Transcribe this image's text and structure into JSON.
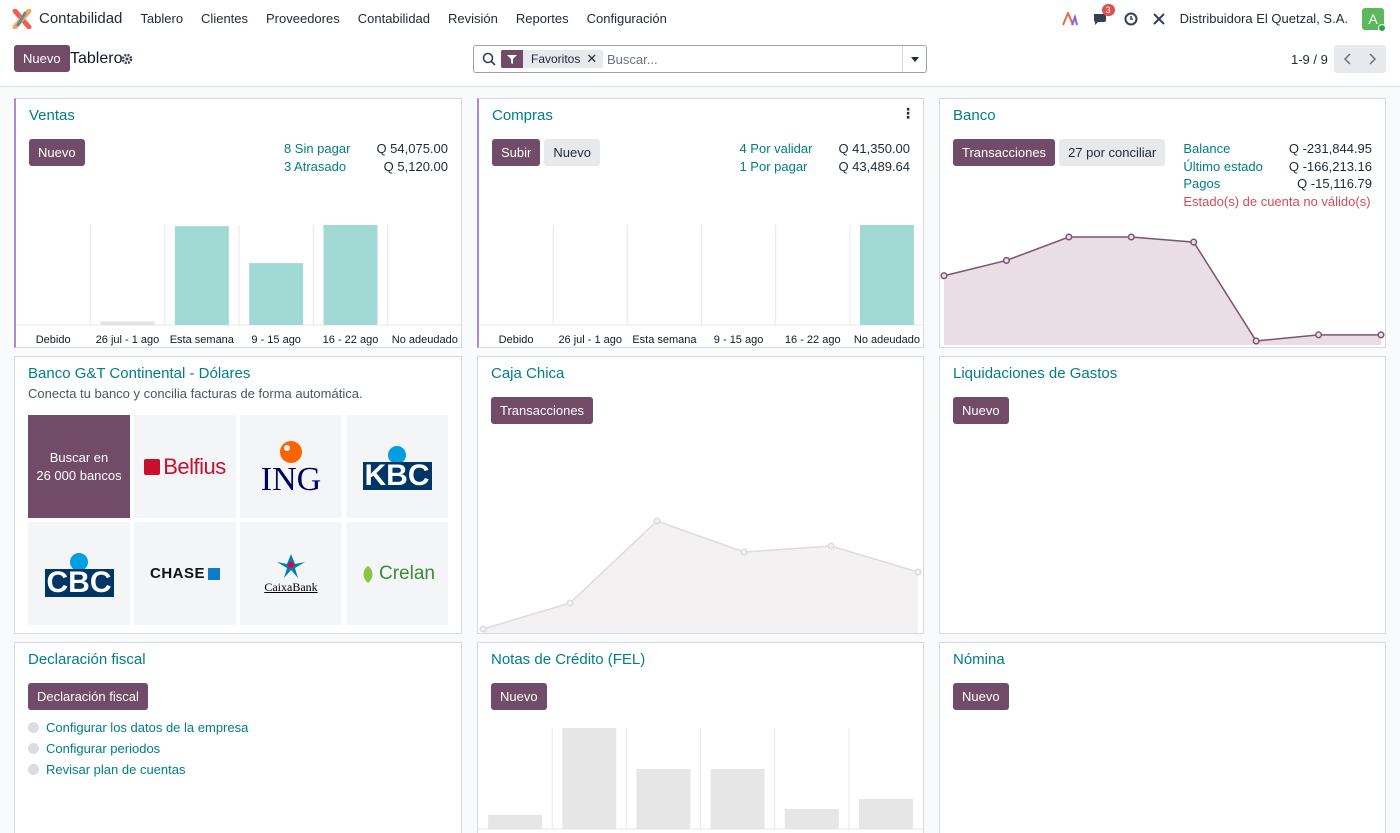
{
  "nav": {
    "app": "Contabilidad",
    "menu": [
      "Tablero",
      "Clientes",
      "Proveedores",
      "Contabilidad",
      "Revisión",
      "Reportes",
      "Configuración"
    ],
    "messages": "3",
    "company": "Distribuidora El Quetzal, S.A.",
    "avatar": "A"
  },
  "control": {
    "new": "Nuevo",
    "breadcrumb": "Tablero",
    "facet": "Favoritos",
    "search_placeholder": "Buscar...",
    "pager": "1-9 / 9"
  },
  "cards": {
    "ventas": {
      "title": "Ventas",
      "button": "Nuevo",
      "stats": [
        {
          "label": "8 Sin pagar",
          "amount": "Q 54,075.00"
        },
        {
          "label": "3 Atrasado",
          "amount": "Q 5,120.00"
        }
      ],
      "chart": {
        "type": "bar",
        "categories": [
          "Debido",
          "26 jul - 1 ago",
          "Esta semana",
          "9 - 15 ago",
          "16 - 22 ago",
          "No adeudado"
        ],
        "values": [
          0,
          3,
          83,
          52,
          84,
          0
        ],
        "colors": [
          "#a1d9d5",
          "#e3e3e3",
          "#a1d9d5",
          "#a1d9d5",
          "#a1d9d5",
          "#a1d9d5"
        ]
      }
    },
    "compras": {
      "title": "Compras",
      "buttons": [
        "Subir",
        "Nuevo"
      ],
      "stats": [
        {
          "label": "4 Por validar",
          "amount": "Q 41,350.00"
        },
        {
          "label": "1 Por pagar",
          "amount": "Q 43,489.64"
        }
      ],
      "chart": {
        "type": "bar",
        "categories": [
          "Debido",
          "26 jul - 1 ago",
          "Esta semana",
          "9 - 15 ago",
          "16 - 22 ago",
          "No adeudado"
        ],
        "values": [
          0,
          0,
          0,
          0,
          0,
          89
        ],
        "colors": [
          "#a1d9d5",
          "#a1d9d5",
          "#a1d9d5",
          "#a1d9d5",
          "#a1d9d5",
          "#a1d9d5"
        ]
      }
    },
    "banco": {
      "title": "Banco",
      "buttons": [
        "Transacciones",
        "27 por conciliar"
      ],
      "stats": [
        {
          "label": "Balance",
          "amount": "Q -231,844.95"
        },
        {
          "label": "Último estado",
          "amount": "Q -166,213.16"
        },
        {
          "label": "Pagos",
          "amount": "Q -15,116.79"
        }
      ],
      "warning": "Estado(s) de cuenta no válido(s)",
      "chart": {
        "type": "line",
        "values": [
          66,
          81,
          104,
          104,
          99,
          2,
          8,
          8
        ],
        "color": "#7b5370",
        "fill": "#e9dde6"
      }
    },
    "bancogt": {
      "title": "Banco G&T Continental - Dólares",
      "subtitle": "Conecta tu banco y concilia facturas de forma automática.",
      "search_line1": "Buscar en",
      "search_line2": "26 000 bancos",
      "banks": [
        "Belfius",
        "ING",
        "KBC",
        "CBC",
        "CHASE",
        "CaixaBank",
        "Crelan"
      ]
    },
    "caja": {
      "title": "Caja Chica",
      "button": "Transacciones",
      "chart": {
        "type": "line",
        "values": [
          2,
          28,
          110,
          79,
          85,
          59
        ],
        "color": "#dcdcdc",
        "fill": "#f3f1f2"
      }
    },
    "liquidaciones": {
      "title": "Liquidaciones de Gastos",
      "button": "Nuevo"
    },
    "declaracion": {
      "title": "Declaración fiscal",
      "button": "Declaración fiscal",
      "steps": [
        "Configurar los datos de la empresa",
        "Configurar periodos",
        "Revisar plan de cuentas"
      ]
    },
    "notas": {
      "title": "Notas de Crédito (FEL)",
      "button": "Nuevo",
      "chart": {
        "type": "bar",
        "values": [
          14,
          101,
          60,
          60,
          20,
          30
        ],
        "colors": [
          "#e6e6e6",
          "#e6e6e6",
          "#e6e6e6",
          "#e6e6e6",
          "#e6e6e6",
          "#e6e6e6"
        ]
      }
    },
    "nomina": {
      "title": "Nómina",
      "button": "Nuevo"
    }
  }
}
